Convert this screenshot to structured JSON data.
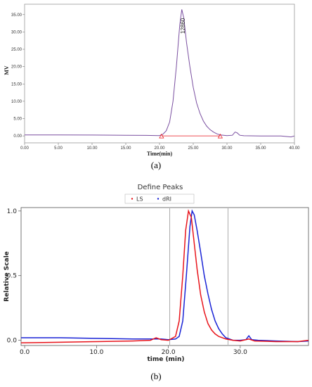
{
  "chart_data": [
    {
      "type": "line",
      "caption": "(a)",
      "xlabel": "Time(min)",
      "ylabel": "MV",
      "xlim": [
        0,
        40
      ],
      "ylim": [
        -2,
        38
      ],
      "x_ticks": [
        "0.00",
        "5.00",
        "10.00",
        "15.00",
        "20.00",
        "25.00",
        "30.00",
        "35.00",
        "40.00"
      ],
      "y_ticks": [
        {
          "v": 0,
          "t": "0.00"
        },
        {
          "v": 5,
          "t": "5.00"
        },
        {
          "v": 10,
          "t": "10.00"
        },
        {
          "v": 15,
          "t": "15.00"
        },
        {
          "v": 20,
          "t": "20.00"
        },
        {
          "v": 25,
          "t": "25.00"
        },
        {
          "v": 30,
          "t": "30.00"
        },
        {
          "v": 35,
          "t": "35.00"
        }
      ],
      "annotation": "12860",
      "baseline": {
        "x": [
          20.3,
          29.0
        ],
        "y": [
          0,
          0
        ]
      },
      "series": [
        {
          "color": "#7a4fa0",
          "x": [
            0,
            5,
            10,
            15,
            18,
            20,
            20.5,
            21,
            21.5,
            22,
            22.5,
            23,
            23.3,
            23.6,
            24,
            24.5,
            25,
            25.5,
            26,
            26.5,
            27,
            27.5,
            28,
            28.5,
            29,
            30,
            30.8,
            31.2,
            31.5,
            31.9,
            32.5,
            35,
            38,
            39.5,
            40
          ],
          "y": [
            0.3,
            0.3,
            0.25,
            0.2,
            0.15,
            0.1,
            0.5,
            1.5,
            4,
            10,
            20,
            32,
            36.5,
            34,
            27,
            20,
            14,
            9.5,
            6.5,
            4.3,
            2.8,
            1.8,
            1.1,
            0.6,
            0.3,
            0.1,
            0.2,
            1.1,
            0.9,
            0.2,
            0.05,
            0,
            0,
            -0.3,
            0
          ]
        }
      ]
    },
    {
      "type": "line",
      "caption": "(b)",
      "title": "Define Peaks",
      "xlabel": "time (min)",
      "ylabel": "Relative Scale",
      "xlim": [
        -0.5,
        39.5
      ],
      "ylim": [
        -0.04,
        1.01
      ],
      "x_ticks": [
        {
          "v": 0,
          "t": "0.0"
        },
        {
          "v": 10,
          "t": "10.0"
        },
        {
          "v": 20,
          "t": "20.0"
        },
        {
          "v": 30,
          "t": "30.0"
        }
      ],
      "y_ticks": [
        {
          "v": 0,
          "t": "0.0"
        },
        {
          "v": 0.5,
          "t": "0.5"
        },
        {
          "v": 1,
          "t": "1.0"
        }
      ],
      "vlines": [
        20.2,
        28.3
      ],
      "series": [
        {
          "name": "LS",
          "color": "#e8141b",
          "x": [
            -0.5,
            5,
            10,
            15,
            17.5,
            18.3,
            19,
            20,
            21,
            21.5,
            22,
            22.4,
            22.8,
            23.2,
            23.6,
            24,
            24.5,
            25,
            25.5,
            26,
            26.5,
            27,
            28,
            29,
            30,
            31.2,
            32,
            35,
            38,
            39.5
          ],
          "y": [
            -0.02,
            -0.015,
            -0.01,
            -0.005,
            0,
            0.02,
            0.005,
            0,
            0.03,
            0.15,
            0.5,
            0.85,
            1.0,
            0.95,
            0.75,
            0.55,
            0.35,
            0.22,
            0.13,
            0.08,
            0.05,
            0.03,
            0.01,
            0,
            -0.005,
            0.01,
            -0.005,
            -0.01,
            -0.01,
            0
          ]
        },
        {
          "name": "dRI",
          "color": "#1a24d6",
          "x": [
            -0.5,
            5,
            10,
            15,
            18,
            19,
            20,
            21,
            21.5,
            22,
            22.5,
            23,
            23.3,
            23.6,
            24,
            24.5,
            25,
            25.5,
            26,
            26.5,
            27,
            27.5,
            28,
            29,
            30,
            30.8,
            31.2,
            31.6,
            32.5,
            35,
            38,
            39.5
          ],
          "y": [
            0.02,
            0.02,
            0.015,
            0.01,
            0.01,
            0.01,
            0.005,
            0.01,
            0.03,
            0.15,
            0.5,
            0.88,
            1.0,
            0.97,
            0.85,
            0.68,
            0.5,
            0.36,
            0.24,
            0.15,
            0.09,
            0.05,
            0.02,
            0,
            0,
            0.005,
            0.035,
            0.005,
            0,
            -0.005,
            -0.01,
            -0.005
          ]
        }
      ]
    }
  ]
}
